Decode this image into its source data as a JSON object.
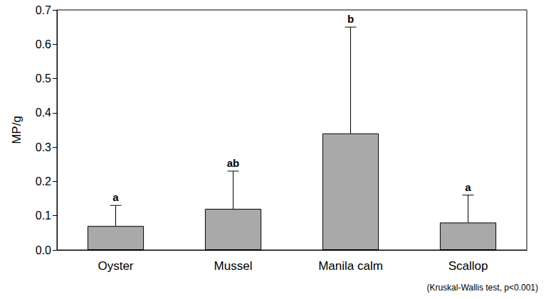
{
  "chart_data": {
    "type": "bar",
    "y_label": "MP/g",
    "categories": [
      "Oyster",
      "Mussel",
      "Manila calm",
      "Scallop"
    ],
    "values": [
      0.07,
      0.12,
      0.34,
      0.08
    ],
    "errors": [
      0.06,
      0.11,
      0.31,
      0.08
    ],
    "letters": [
      "a",
      "ab",
      "b",
      "a"
    ],
    "note": "(Kruskal-Wallis test, p<0.001)",
    "color": "#a9a9a9",
    "ylim": [
      0,
      0.7
    ],
    "yticks": [
      {
        "value": 0,
        "label": "0.0"
      },
      0.1,
      0.2,
      0.3,
      0.4,
      0.5,
      0.6,
      0.7
    ],
    "grid": false
  }
}
